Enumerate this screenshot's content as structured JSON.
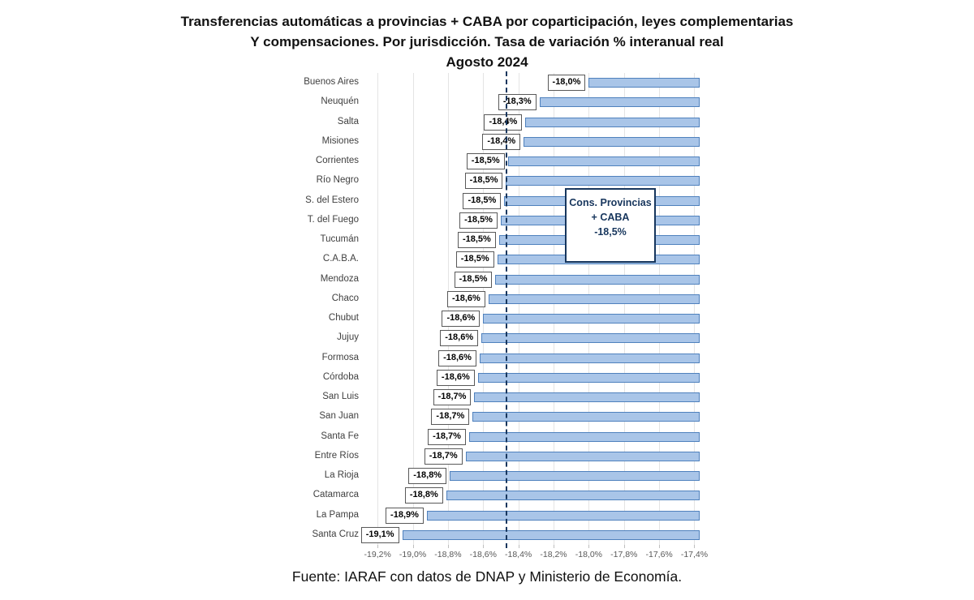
{
  "title": {
    "line1": "Transferencias automáticas a provincias + CABA por coparticipación, leyes complementarias",
    "line2": "Y compensaciones. Por jurisdicción. Tasa de variación % interanual real",
    "line3": "Agosto 2024"
  },
  "source": "Fuente: IARAF con datos de DNAP y Ministerio de Economía.",
  "annotation": {
    "line1": "Cons. Provincias",
    "line2": "+ CABA",
    "line3": "-18,5%"
  },
  "chart_data": {
    "type": "bar",
    "orientation": "horizontal",
    "title": "Transferencias automáticas a provincias + CABA por coparticipación, leyes complementarias Y compensaciones. Por jurisdicción. Tasa de variación % interanual real — Agosto 2024",
    "categories": [
      "Buenos Aires",
      "Neuquén",
      "Salta",
      "Misiones",
      "Corrientes",
      "Río Negro",
      "S. del Estero",
      "T. del Fuego",
      "Tucumán",
      "C.A.B.A.",
      "Mendoza",
      "Chaco",
      "Chubut",
      "Jujuy",
      "Formosa",
      "Córdoba",
      "San Luis",
      "San Juan",
      "Santa Fe",
      "Entre Ríos",
      "La Rioja",
      "Catamarca",
      "La Pampa",
      "Santa Cruz"
    ],
    "values": [
      -18.0,
      -18.28,
      -18.36,
      -18.37,
      -18.46,
      -18.47,
      -18.48,
      -18.5,
      -18.51,
      -18.52,
      -18.53,
      -18.57,
      -18.6,
      -18.61,
      -18.62,
      -18.63,
      -18.65,
      -18.66,
      -18.68,
      -18.7,
      -18.79,
      -18.81,
      -18.92,
      -19.06
    ],
    "value_labels": [
      "-18,0%",
      "-18,3%",
      "-18,4%",
      "-18,4%",
      "-18,5%",
      "-18,5%",
      "-18,5%",
      "-18,5%",
      "-18,5%",
      "-18,5%",
      "-18,5%",
      "-18,6%",
      "-18,6%",
      "-18,6%",
      "-18,6%",
      "-18,6%",
      "-18,7%",
      "-18,7%",
      "-18,7%",
      "-18,7%",
      "-18,8%",
      "-18,8%",
      "-18,9%",
      "-19,1%"
    ],
    "xlabel": "",
    "ylabel": "",
    "xlim": [
      -19.27,
      -17.37
    ],
    "grid": true,
    "ticks": {
      "values": [
        -19.2,
        -19.0,
        -18.8,
        -18.6,
        -18.4,
        -18.2,
        -18.0,
        -17.8,
        -17.6,
        -17.4
      ],
      "labels": [
        "-19,2%",
        "-19,0%",
        "-18,8%",
        "-18,6%",
        "-18,4%",
        "-18,2%",
        "-18,0%",
        "-17,8%",
        "-17,6%",
        "-17,4%"
      ]
    },
    "reference_line": {
      "value": -18.47,
      "label": "Cons. Provincias + CABA -18,5%"
    }
  },
  "colors": {
    "bar_fill": "#a9c5e8",
    "bar_border": "#4f81bd",
    "grid": "#e4e4e4",
    "tick_mark": "#bfbfbf",
    "reference": "#17365d",
    "value_box_border": "#595959",
    "tick_text": "#595959",
    "category_text": "#3f3f3f",
    "title_text": "#111111"
  }
}
